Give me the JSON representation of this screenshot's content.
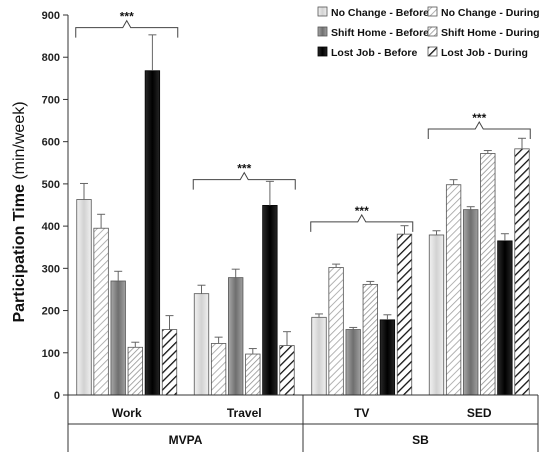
{
  "chart_data": {
    "type": "bar",
    "ylabel": "Participation Time",
    "ylabel_unit": "(min/week)",
    "ylim": [
      0,
      900
    ],
    "yticks": [
      0,
      100,
      200,
      300,
      400,
      500,
      600,
      700,
      800,
      900
    ],
    "categories": [
      "Work",
      "Travel",
      "TV",
      "SED"
    ],
    "groups": [
      {
        "label": "MVPA",
        "categories": [
          "Work",
          "Travel"
        ]
      },
      {
        "label": "SB",
        "categories": [
          "TV",
          "SED"
        ]
      }
    ],
    "legend_position": "top-right",
    "series": [
      {
        "name": "No Change - Before",
        "values": [
          463,
          240,
          184,
          379
        ],
        "errors": [
          38,
          20,
          8,
          10
        ],
        "fill": "light-gray"
      },
      {
        "name": "No Change - During",
        "values": [
          395,
          122,
          302,
          498
        ],
        "errors": [
          33,
          15,
          8,
          12
        ],
        "fill": "light-hatch"
      },
      {
        "name": "Shift Home - Before",
        "values": [
          270,
          278,
          155,
          439
        ],
        "errors": [
          23,
          20,
          5,
          7
        ],
        "fill": "medium-gray"
      },
      {
        "name": "Shift Home - During",
        "values": [
          113,
          97,
          262,
          572
        ],
        "errors": [
          12,
          13,
          7,
          7
        ],
        "fill": "light-hatch-2"
      },
      {
        "name": "Lost Job - Before",
        "values": [
          768,
          449,
          178,
          365
        ],
        "errors": [
          85,
          57,
          12,
          17
        ],
        "fill": "black"
      },
      {
        "name": "Lost Job - During",
        "values": [
          155,
          117,
          381,
          583
        ],
        "errors": [
          33,
          33,
          20,
          25
        ],
        "fill": "bold-hatch"
      }
    ],
    "annotations": [
      {
        "category": "Work",
        "text": "***",
        "y": 870
      },
      {
        "category": "Travel",
        "text": "***",
        "y": 510
      },
      {
        "category": "TV",
        "text": "***",
        "y": 410
      },
      {
        "category": "SED",
        "text": "***",
        "y": 630
      }
    ],
    "colors": {
      "light-gray": "#dcdcdc",
      "medium-gray": "#8a8a8a",
      "black": "#0a0a0a",
      "hatch-line": "#9a9a9a",
      "bold-hatch-line": "#111111"
    }
  }
}
